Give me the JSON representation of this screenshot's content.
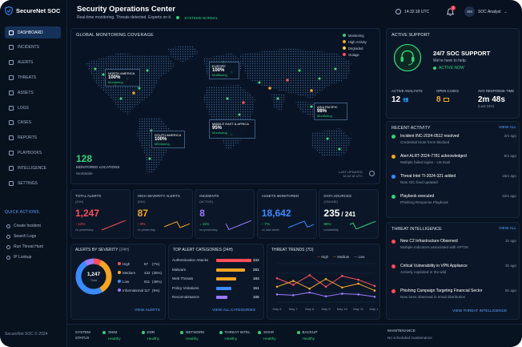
{
  "brand": {
    "name": "SecureNet SOC",
    "copyright": "SecureNet SOC © 2024"
  },
  "header": {
    "title": "Security Operations Center",
    "subtitle": "Real-time monitoring. Threats detected. Experts on it.",
    "status": "SYSTEMS NORMAL",
    "time": "14:32:18 UTC",
    "notif_count": "3",
    "avatar": "SM",
    "user": "SOC Analyst"
  },
  "nav": [
    "DASHBOARD",
    "INCIDENTS",
    "ALERTS",
    "THREATS",
    "ASSETS",
    "LOGS",
    "CASES",
    "REPORTS",
    "PLAYBOOKS",
    "INTELLIGENCE",
    "SETTINGS"
  ],
  "quick_actions": {
    "title": "QUICK ACTIONS",
    "items": [
      "Create Incident",
      "Search Logs",
      "Run Threat Hunt",
      "IP Lookup"
    ]
  },
  "map": {
    "title": "GLOBAL MONITORING COVERAGE",
    "legend": [
      "Monitoring",
      "High Activity",
      "Degraded",
      "Outage"
    ],
    "regions": [
      {
        "name": "NORTH AMERICA",
        "pct": "100%",
        "status": "Monitoring"
      },
      {
        "name": "EUROPE",
        "pct": "100%",
        "status": "Monitoring"
      },
      {
        "name": "ASIA PACIFIC",
        "pct": "98%",
        "status": "Monitoring"
      },
      {
        "name": "SOUTH AMERICA",
        "pct": "100%",
        "status": "Monitoring"
      },
      {
        "name": "MIDDLE EAST & AFRICA",
        "pct": "95%",
        "status": "Monitoring"
      }
    ],
    "locations": "128",
    "locations_label": "MONITORED LOCATIONS",
    "locations_sub": "Worldwide",
    "last_updated": "LAST UPDATED",
    "last_updated_time": "14:32:18 UTC"
  },
  "stats": [
    {
      "label": "TOTAL ALERTS",
      "sub": "(24H)",
      "value": "1,247",
      "change": "↑ 12%",
      "change_sub": "vs yesterday"
    },
    {
      "label": "HIGH SEVERITY ALERTS",
      "sub": "(24H)",
      "value": "87",
      "change": "↑ 8%",
      "change_sub": "vs yesterday"
    },
    {
      "label": "INCIDENTS",
      "sub": "(ACTIVE)",
      "value": "8",
      "change": "↓ 11%",
      "change_sub": "vs yesterday"
    },
    {
      "label": "ASSETS MONITORED",
      "sub": "",
      "value": "18,642",
      "change": "↑ 7%",
      "change_sub": "vs last week"
    },
    {
      "label": "DATA SOURCES",
      "sub": "(ONLINE)",
      "value": "235",
      "value2": "/ 241",
      "change": "98%",
      "change_sub": "availability"
    }
  ],
  "severity": {
    "title": "ALERTS BY SEVERITY",
    "period": "(24H)",
    "total": "1,247",
    "total_label": "Total",
    "link": "VIEW ALERTS",
    "items": [
      {
        "name": "High",
        "value": "87",
        "pct": "(7%)"
      },
      {
        "name": "Medium",
        "value": "432",
        "pct": "(35%)"
      },
      {
        "name": "Low",
        "value": "611",
        "pct": "(49%)"
      },
      {
        "name": "Informational",
        "value": "117",
        "pct": "(9%)"
      }
    ]
  },
  "categories": {
    "title": "TOP ALERT CATEGORIES (24H)",
    "link": "VIEW ALL CATEGORIES",
    "items": [
      {
        "name": "Authentication Attacks",
        "value": "342"
      },
      {
        "name": "Malware",
        "value": "281"
      },
      {
        "name": "Web Threats",
        "value": "193"
      },
      {
        "name": "Policy Violations",
        "value": "151"
      },
      {
        "name": "Reconnaissance",
        "value": "105"
      }
    ]
  },
  "chart_data": {
    "type": "line",
    "title": "THREAT TRENDS (7D)",
    "categories": [
      "May 6",
      "May 7",
      "May 8",
      "May 9",
      "May 10",
      "May 11",
      "May 12"
    ],
    "ylim": [
      0,
      100
    ],
    "legend_position": "top",
    "series": [
      {
        "name": "High",
        "color": "#ff4d5a",
        "values": [
          62,
          45,
          70,
          40,
          68,
          58,
          42
        ]
      },
      {
        "name": "Medium",
        "color": "#f5a524",
        "values": [
          40,
          55,
          35,
          60,
          38,
          48,
          30
        ]
      },
      {
        "name": "Low",
        "color": "#9b7bff",
        "values": [
          20,
          18,
          25,
          15,
          22,
          20,
          14
        ]
      }
    ]
  },
  "support": {
    "title": "ACTIVE SUPPORT",
    "heading": "24/7 SOC SUPPORT",
    "text": "We're here to help.",
    "status": "ACTIVE NOW",
    "metrics": [
      {
        "label": "ACTIVE ANALYSTS",
        "value": "12"
      },
      {
        "label": "OPEN CASES",
        "value": "8"
      },
      {
        "label": "AVG RESPONSE TIME",
        "value": "2m 48s",
        "sub": "(Last 24H)"
      }
    ]
  },
  "activity": {
    "title": "RECENT ACTIVITY",
    "link": "VIEW ALL",
    "items": [
      {
        "title": "Incident INC-2024-0512 resolved",
        "sub": "Credential brute force blocked",
        "time": "2m ago"
      },
      {
        "title": "Alert ALRT-2024-7781 acknowledged",
        "sub": "Multiple failed logins - US East",
        "time": "6m ago"
      },
      {
        "title": "Threat Intel TI-2024-321 added",
        "sub": "New IOC feed updated",
        "time": "15m ago"
      },
      {
        "title": "Playbook executed",
        "sub": "Phishing Response Playbook",
        "time": "22m ago"
      }
    ]
  },
  "intel": {
    "title": "THREAT INTELLIGENCE",
    "link": "VIEW ALL",
    "footer_link": "VIEW THREAT INTELLIGENCE",
    "items": [
      {
        "title": "New C2 Infrastructure Observed",
        "sub": "Multiple indicators associated with APT29",
        "time": "1h ago"
      },
      {
        "title": "Critical Vulnerability in VPN Appliance",
        "sub": "Actively exploited in the wild",
        "time": "3h ago"
      },
      {
        "title": "Phishing Campaign Targeting Financial Sector",
        "sub": "New lures observed in email distribution",
        "time": "5h ago"
      }
    ]
  },
  "footer": {
    "system": "SYSTEM",
    "status": "STATUS",
    "items": [
      {
        "name": "SIEM",
        "state": "Healthy"
      },
      {
        "name": "EDR",
        "state": "Healthy"
      },
      {
        "name": "NETWORK",
        "state": "Healthy"
      },
      {
        "name": "THREAT INTEL",
        "state": "Healthy"
      },
      {
        "name": "SOAR",
        "state": "Healthy"
      },
      {
        "name": "BACKUP",
        "state": "Healthy"
      }
    ],
    "maintenance": "MAINTENANCE",
    "maintenance_text": "No scheduled maintenance"
  }
}
